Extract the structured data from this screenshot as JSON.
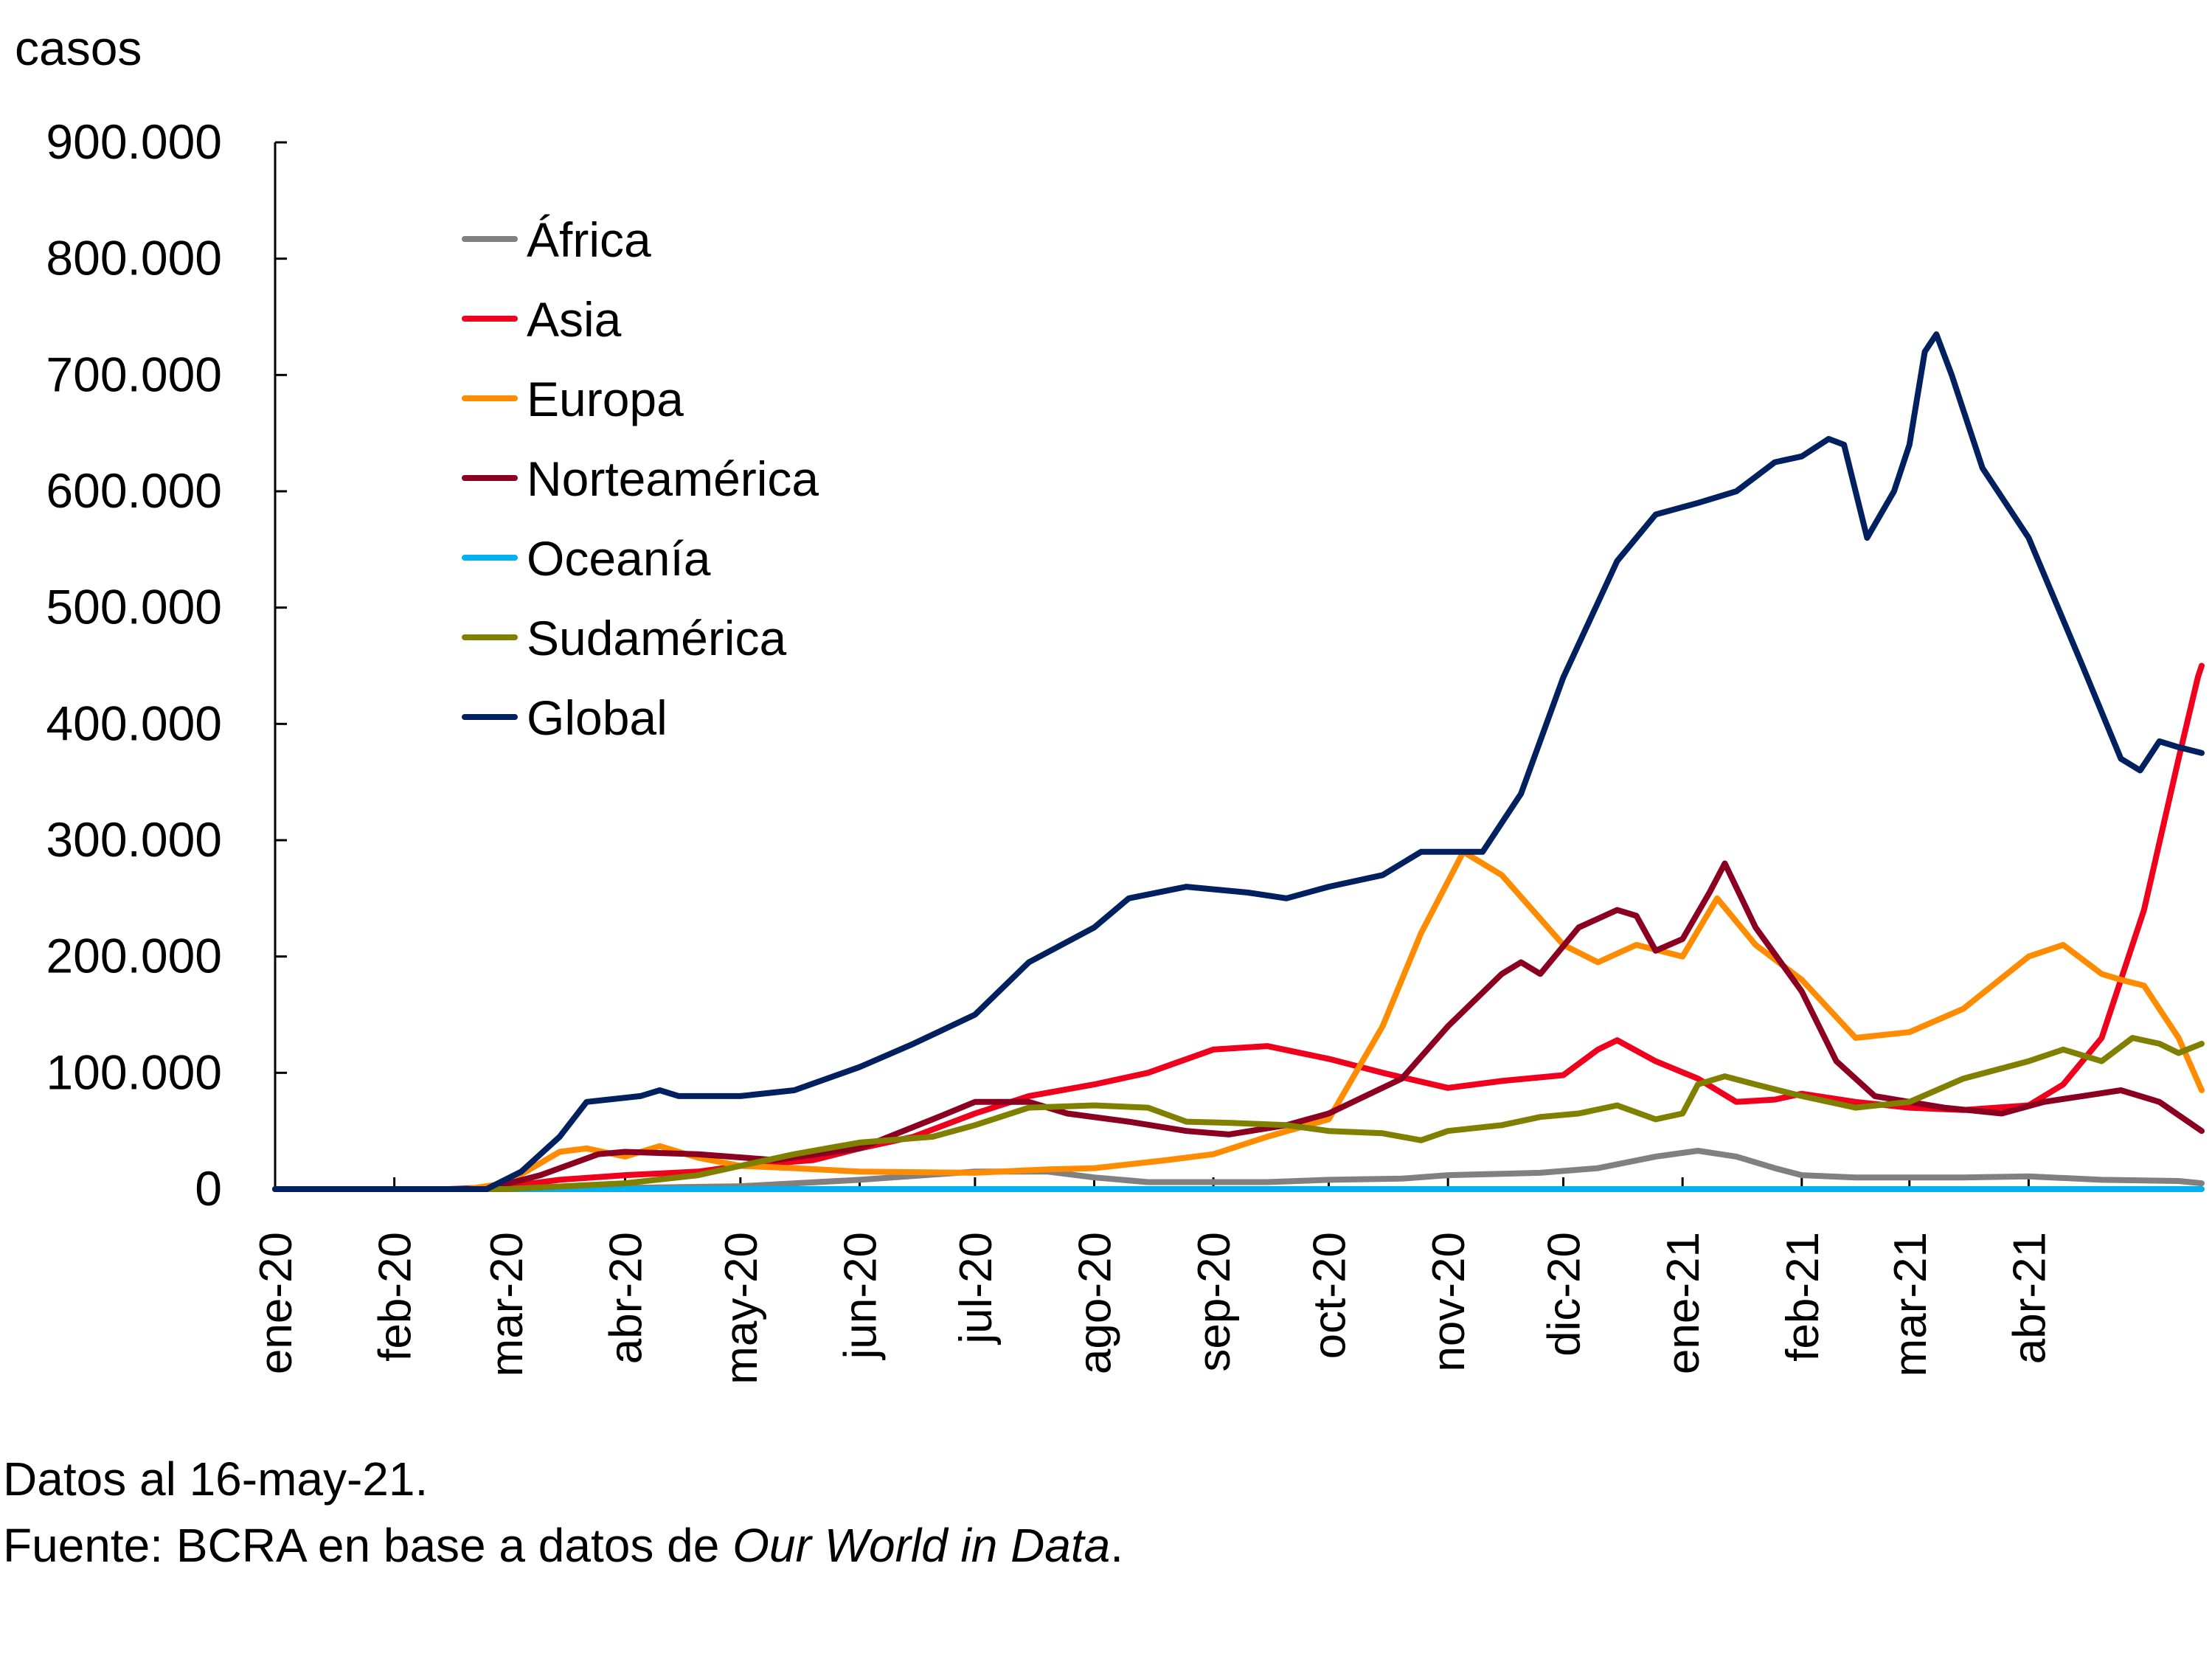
{
  "chart_data": {
    "type": "line",
    "title": "",
    "ylabel": "casos",
    "xlabel": "",
    "ylim": [
      0,
      900000
    ],
    "yticks": [
      0,
      100000,
      200000,
      300000,
      400000,
      500000,
      600000,
      700000,
      800000,
      900000
    ],
    "ytick_labels": [
      "0",
      "100.000",
      "200.000",
      "300.000",
      "400.000",
      "500.000",
      "600.000",
      "700.000",
      "800.000",
      "900.000"
    ],
    "x_start": "2020-01-01",
    "x_end": "2021-05-16",
    "xticks": [
      "2020-01-01",
      "2020-02-01",
      "2020-03-01",
      "2020-04-01",
      "2020-05-01",
      "2020-06-01",
      "2020-07-01",
      "2020-08-01",
      "2020-09-01",
      "2020-10-01",
      "2020-11-01",
      "2020-12-01",
      "2021-01-01",
      "2021-02-01",
      "2021-03-01",
      "2021-04-01"
    ],
    "xtick_labels": [
      "ene-20",
      "feb-20",
      "mar-20",
      "abr-20",
      "may-20",
      "jun-20",
      "jul-20",
      "ago-20",
      "sep-20",
      "oct-20",
      "nov-20",
      "dic-20",
      "ene-21",
      "feb-21",
      "mar-21",
      "abr-21"
    ],
    "grid": false,
    "legend_position": "top-left",
    "series": [
      {
        "name": "África",
        "color": "#808080",
        "points": [
          [
            "2020-01-01",
            0
          ],
          [
            "2020-03-01",
            0
          ],
          [
            "2020-04-01",
            1000
          ],
          [
            "2020-05-01",
            2500
          ],
          [
            "2020-06-01",
            8000
          ],
          [
            "2020-07-01",
            15000
          ],
          [
            "2020-07-20",
            15000
          ],
          [
            "2020-08-01",
            10000
          ],
          [
            "2020-08-15",
            6000
          ],
          [
            "2020-09-15",
            6000
          ],
          [
            "2020-10-01",
            8000
          ],
          [
            "2020-10-20",
            9000
          ],
          [
            "2020-11-01",
            12000
          ],
          [
            "2020-11-25",
            14000
          ],
          [
            "2020-12-10",
            18000
          ],
          [
            "2020-12-25",
            28000
          ],
          [
            "2021-01-05",
            33000
          ],
          [
            "2021-01-15",
            28000
          ],
          [
            "2021-01-25",
            18000
          ],
          [
            "2021-02-01",
            12000
          ],
          [
            "2021-02-15",
            10000
          ],
          [
            "2021-03-01",
            10000
          ],
          [
            "2021-03-15",
            10000
          ],
          [
            "2021-04-01",
            11000
          ],
          [
            "2021-04-20",
            8000
          ],
          [
            "2021-05-10",
            7000
          ],
          [
            "2021-05-16",
            5000
          ]
        ]
      },
      {
        "name": "Asia",
        "color": "#f0001c",
        "points": [
          [
            "2020-01-01",
            0
          ],
          [
            "2020-02-15",
            0
          ],
          [
            "2020-03-01",
            2000
          ],
          [
            "2020-03-15",
            8000
          ],
          [
            "2020-04-01",
            12000
          ],
          [
            "2020-04-20",
            15000
          ],
          [
            "2020-05-01",
            20000
          ],
          [
            "2020-05-20",
            25000
          ],
          [
            "2020-06-01",
            35000
          ],
          [
            "2020-06-15",
            45000
          ],
          [
            "2020-07-01",
            65000
          ],
          [
            "2020-07-15",
            80000
          ],
          [
            "2020-08-01",
            90000
          ],
          [
            "2020-08-15",
            100000
          ],
          [
            "2020-09-01",
            120000
          ],
          [
            "2020-09-15",
            123000
          ],
          [
            "2020-10-01",
            112000
          ],
          [
            "2020-10-15",
            100000
          ],
          [
            "2020-11-01",
            87000
          ],
          [
            "2020-11-15",
            93000
          ],
          [
            "2020-12-01",
            98000
          ],
          [
            "2020-12-10",
            120000
          ],
          [
            "2020-12-15",
            128000
          ],
          [
            "2020-12-25",
            110000
          ],
          [
            "2021-01-05",
            95000
          ],
          [
            "2021-01-15",
            75000
          ],
          [
            "2021-01-25",
            77000
          ],
          [
            "2021-02-01",
            82000
          ],
          [
            "2021-02-15",
            75000
          ],
          [
            "2021-03-01",
            70000
          ],
          [
            "2021-03-15",
            68000
          ],
          [
            "2021-04-01",
            72000
          ],
          [
            "2021-04-10",
            90000
          ],
          [
            "2021-04-20",
            130000
          ],
          [
            "2021-05-01",
            240000
          ],
          [
            "2021-05-10",
            370000
          ],
          [
            "2021-05-15",
            440000
          ],
          [
            "2021-05-16",
            450000
          ]
        ]
      },
      {
        "name": "Europa",
        "color": "#ff8c00",
        "points": [
          [
            "2020-01-01",
            0
          ],
          [
            "2020-02-20",
            0
          ],
          [
            "2020-03-01",
            5000
          ],
          [
            "2020-03-15",
            32000
          ],
          [
            "2020-03-22",
            35000
          ],
          [
            "2020-04-01",
            28000
          ],
          [
            "2020-04-10",
            37000
          ],
          [
            "2020-04-20",
            27000
          ],
          [
            "2020-05-01",
            20000
          ],
          [
            "2020-05-15",
            18000
          ],
          [
            "2020-06-01",
            15000
          ],
          [
            "2020-07-01",
            14000
          ],
          [
            "2020-07-20",
            17000
          ],
          [
            "2020-08-01",
            18000
          ],
          [
            "2020-08-20",
            25000
          ],
          [
            "2020-09-01",
            30000
          ],
          [
            "2020-09-15",
            45000
          ],
          [
            "2020-10-01",
            60000
          ],
          [
            "2020-10-15",
            140000
          ],
          [
            "2020-10-25",
            220000
          ],
          [
            "2020-11-05",
            290000
          ],
          [
            "2020-11-15",
            270000
          ],
          [
            "2020-12-01",
            210000
          ],
          [
            "2020-12-10",
            195000
          ],
          [
            "2020-12-20",
            210000
          ],
          [
            "2021-01-01",
            200000
          ],
          [
            "2021-01-10",
            250000
          ],
          [
            "2021-01-20",
            210000
          ],
          [
            "2021-02-01",
            180000
          ],
          [
            "2021-02-15",
            130000
          ],
          [
            "2021-03-01",
            135000
          ],
          [
            "2021-03-15",
            155000
          ],
          [
            "2021-04-01",
            200000
          ],
          [
            "2021-04-10",
            210000
          ],
          [
            "2021-04-20",
            185000
          ],
          [
            "2021-04-25",
            180000
          ],
          [
            "2021-05-01",
            175000
          ],
          [
            "2021-05-10",
            130000
          ],
          [
            "2021-05-16",
            85000
          ]
        ]
      },
      {
        "name": "Norteamérica",
        "color": "#8b0020",
        "points": [
          [
            "2020-01-01",
            0
          ],
          [
            "2020-02-25",
            0
          ],
          [
            "2020-03-10",
            12000
          ],
          [
            "2020-03-25",
            30000
          ],
          [
            "2020-04-01",
            32000
          ],
          [
            "2020-04-20",
            30000
          ],
          [
            "2020-05-10",
            25000
          ],
          [
            "2020-06-01",
            35000
          ],
          [
            "2020-06-20",
            60000
          ],
          [
            "2020-07-01",
            75000
          ],
          [
            "2020-07-15",
            75000
          ],
          [
            "2020-07-25",
            65000
          ],
          [
            "2020-08-10",
            58000
          ],
          [
            "2020-08-25",
            50000
          ],
          [
            "2020-09-05",
            47000
          ],
          [
            "2020-09-20",
            55000
          ],
          [
            "2020-10-01",
            65000
          ],
          [
            "2020-10-20",
            95000
          ],
          [
            "2020-11-01",
            140000
          ],
          [
            "2020-11-15",
            185000
          ],
          [
            "2020-11-20",
            195000
          ],
          [
            "2020-11-25",
            185000
          ],
          [
            "2020-12-05",
            225000
          ],
          [
            "2020-12-15",
            240000
          ],
          [
            "2020-12-20",
            235000
          ],
          [
            "2020-12-25",
            205000
          ],
          [
            "2021-01-01",
            215000
          ],
          [
            "2021-01-08",
            255000
          ],
          [
            "2021-01-12",
            280000
          ],
          [
            "2021-01-20",
            225000
          ],
          [
            "2021-02-01",
            170000
          ],
          [
            "2021-02-10",
            110000
          ],
          [
            "2021-02-20",
            80000
          ],
          [
            "2021-03-01",
            75000
          ],
          [
            "2021-03-10",
            70000
          ],
          [
            "2021-03-25",
            65000
          ],
          [
            "2021-04-05",
            75000
          ],
          [
            "2021-04-15",
            80000
          ],
          [
            "2021-04-25",
            85000
          ],
          [
            "2021-05-05",
            75000
          ],
          [
            "2021-05-16",
            50000
          ]
        ]
      },
      {
        "name": "Oceanía",
        "color": "#00b0f0",
        "points": [
          [
            "2020-01-01",
            0
          ],
          [
            "2021-05-16",
            0
          ]
        ]
      },
      {
        "name": "Sudamérica",
        "color": "#808000",
        "points": [
          [
            "2020-01-01",
            0
          ],
          [
            "2020-03-01",
            0
          ],
          [
            "2020-04-01",
            5000
          ],
          [
            "2020-04-20",
            12000
          ],
          [
            "2020-05-01",
            20000
          ],
          [
            "2020-05-15",
            30000
          ],
          [
            "2020-06-01",
            40000
          ],
          [
            "2020-06-20",
            45000
          ],
          [
            "2020-07-01",
            55000
          ],
          [
            "2020-07-15",
            70000
          ],
          [
            "2020-08-01",
            72000
          ],
          [
            "2020-08-15",
            70000
          ],
          [
            "2020-08-25",
            58000
          ],
          [
            "2020-09-05",
            57000
          ],
          [
            "2020-09-20",
            55000
          ],
          [
            "2020-10-01",
            50000
          ],
          [
            "2020-10-15",
            48000
          ],
          [
            "2020-10-25",
            42000
          ],
          [
            "2020-11-01",
            50000
          ],
          [
            "2020-11-15",
            55000
          ],
          [
            "2020-11-25",
            62000
          ],
          [
            "2020-12-05",
            65000
          ],
          [
            "2020-12-15",
            72000
          ],
          [
            "2020-12-25",
            60000
          ],
          [
            "2021-01-01",
            65000
          ],
          [
            "2021-01-05",
            90000
          ],
          [
            "2021-01-12",
            97000
          ],
          [
            "2021-01-20",
            90000
          ],
          [
            "2021-02-01",
            80000
          ],
          [
            "2021-02-15",
            70000
          ],
          [
            "2021-03-01",
            75000
          ],
          [
            "2021-03-15",
            95000
          ],
          [
            "2021-04-01",
            110000
          ],
          [
            "2021-04-10",
            120000
          ],
          [
            "2021-04-20",
            110000
          ],
          [
            "2021-04-28",
            130000
          ],
          [
            "2021-05-05",
            125000
          ],
          [
            "2021-05-10",
            117000
          ],
          [
            "2021-05-16",
            125000
          ]
        ]
      },
      {
        "name": "Global",
        "color": "#002060",
        "points": [
          [
            "2020-01-01",
            0
          ],
          [
            "2020-02-25",
            0
          ],
          [
            "2020-03-05",
            15000
          ],
          [
            "2020-03-15",
            45000
          ],
          [
            "2020-03-22",
            75000
          ],
          [
            "2020-04-05",
            80000
          ],
          [
            "2020-04-10",
            85000
          ],
          [
            "2020-04-15",
            80000
          ],
          [
            "2020-05-01",
            80000
          ],
          [
            "2020-05-15",
            85000
          ],
          [
            "2020-06-01",
            105000
          ],
          [
            "2020-06-15",
            125000
          ],
          [
            "2020-07-01",
            150000
          ],
          [
            "2020-07-15",
            195000
          ],
          [
            "2020-08-01",
            225000
          ],
          [
            "2020-08-10",
            250000
          ],
          [
            "2020-08-25",
            260000
          ],
          [
            "2020-09-10",
            255000
          ],
          [
            "2020-09-20",
            250000
          ],
          [
            "2020-10-01",
            260000
          ],
          [
            "2020-10-15",
            270000
          ],
          [
            "2020-10-25",
            290000
          ],
          [
            "2020-11-10",
            290000
          ],
          [
            "2020-11-20",
            340000
          ],
          [
            "2020-12-01",
            440000
          ],
          [
            "2020-12-15",
            540000
          ],
          [
            "2020-12-25",
            580000
          ],
          [
            "2021-01-05",
            590000
          ],
          [
            "2021-01-15",
            600000
          ],
          [
            "2021-01-25",
            625000
          ],
          [
            "2021-02-01",
            630000
          ],
          [
            "2021-02-08",
            645000
          ],
          [
            "2021-02-12",
            640000
          ],
          [
            "2021-02-18",
            560000
          ],
          [
            "2021-02-25",
            600000
          ],
          [
            "2021-03-01",
            640000
          ],
          [
            "2021-03-05",
            720000
          ],
          [
            "2021-03-08",
            735000
          ],
          [
            "2021-03-12",
            700000
          ],
          [
            "2021-03-20",
            620000
          ],
          [
            "2021-04-01",
            560000
          ],
          [
            "2021-04-15",
            450000
          ],
          [
            "2021-04-25",
            370000
          ],
          [
            "2021-04-30",
            360000
          ],
          [
            "2021-05-05",
            385000
          ],
          [
            "2021-05-10",
            380000
          ],
          [
            "2021-05-16",
            375000
          ]
        ]
      }
    ]
  },
  "legend": {
    "items": [
      "África",
      "Asia",
      "Europa",
      "Norteamérica",
      "Oceanía",
      "Sudamérica",
      "Global"
    ]
  },
  "axis": {
    "unit_label": "casos"
  },
  "footer": {
    "note": "Datos al 16-may-21.",
    "source_prefix": "Fuente: BCRA en base a datos de ",
    "source_italic": "Our World in Data",
    "source_suffix": "."
  }
}
